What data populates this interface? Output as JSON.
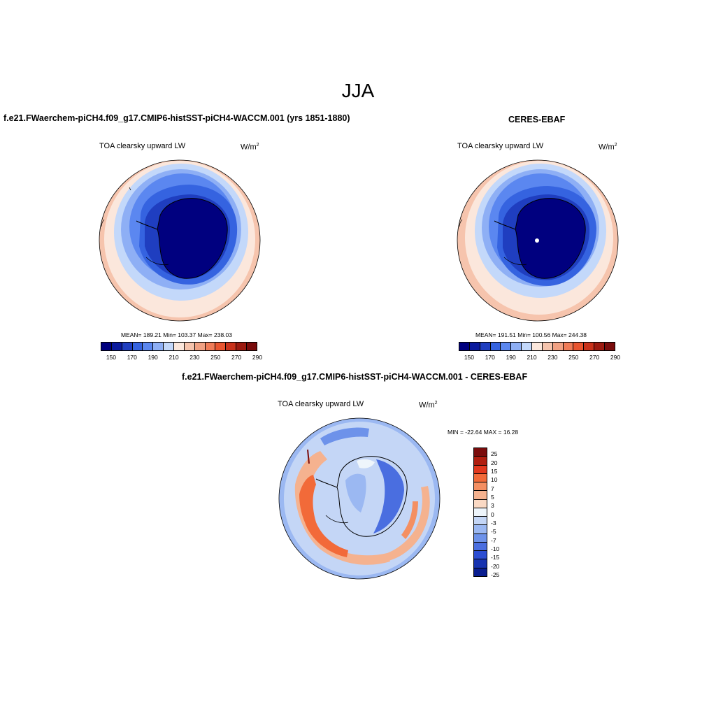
{
  "title": "JJA",
  "panels": [
    {
      "title": "f.e21.FWaerchem-piCH4.f09_g17.CMIP6-histSST-piCH4-WACCM.001 (yrs 1851-1880)",
      "variable": "TOA clearsky upward LW",
      "units_base": "W/m",
      "units_exp": "2",
      "stats": "MEAN= 189.21  Min= 103.37  Max= 238.03",
      "colorbar_ticks": [
        "150",
        "170",
        "190",
        "210",
        "230",
        "250",
        "270",
        "290"
      ]
    },
    {
      "title": "CERES-EBAF",
      "variable": "TOA clearsky upward LW",
      "units_base": "W/m",
      "units_exp": "2",
      "stats": "MEAN= 191.51  Min= 100.56  Max= 244.38",
      "colorbar_ticks": [
        "150",
        "170",
        "190",
        "210",
        "230",
        "250",
        "270",
        "290"
      ]
    }
  ],
  "diff_panel": {
    "title": "f.e21.FWaerchem-piCH4.f09_g17.CMIP6-histSST-piCH4-WACCM.001 - CERES-EBAF",
    "variable": "TOA clearsky upward LW",
    "units_base": "W/m",
    "units_exp": "2",
    "stats": "MIN = -22.64 MAX =  16.28",
    "colorbar_ticks": [
      "25",
      "20",
      "15",
      "10",
      "7",
      "5",
      "3",
      "0",
      "-3",
      "-5",
      "-7",
      "-10",
      "-15",
      "-20",
      "-25"
    ]
  },
  "abs_palette": [
    "#00007f",
    "#0a1a9e",
    "#1f3ec0",
    "#3563e0",
    "#5b87f0",
    "#8eaff5",
    "#c3d8fa",
    "#fbe7dc",
    "#f6c4ad",
    "#f1a183",
    "#f07c58",
    "#e95530",
    "#c9321b",
    "#9c1a10",
    "#7a0c0c"
  ],
  "diff_palette": [
    "#7a0c0c",
    "#b01e10",
    "#e2381e",
    "#f26a39",
    "#f48f62",
    "#f5b28f",
    "#fad9c4",
    "#eef5fb",
    "#c4d6f6",
    "#9bb8f2",
    "#6d92ea",
    "#4a6ee0",
    "#2b4dd2",
    "#1733b0",
    "#0a1e90"
  ]
}
